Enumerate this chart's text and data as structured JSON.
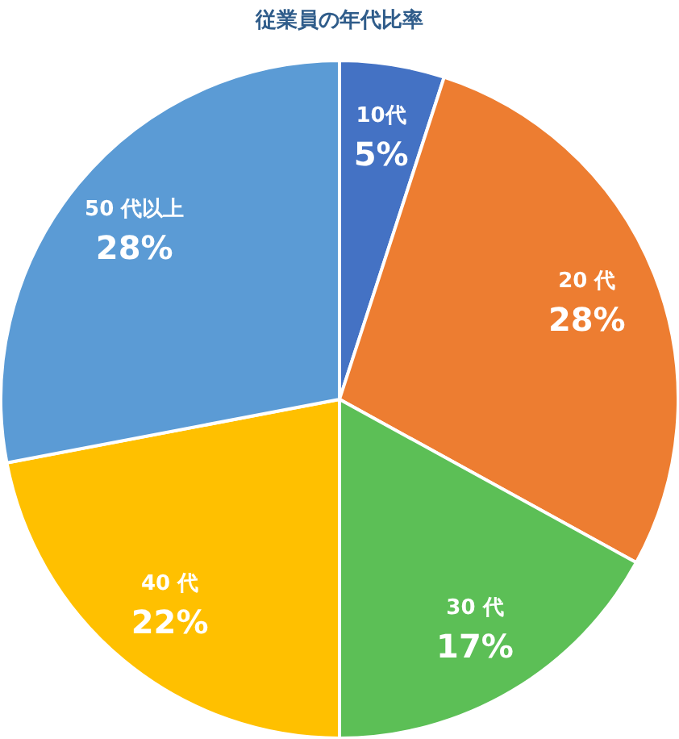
{
  "chart_data": {
    "type": "pie",
    "title": "従業員の年代比率",
    "categories": [
      "10代",
      "20 代",
      "30 代",
      "40 代",
      "50 代以上"
    ],
    "values": [
      5,
      28,
      17,
      22,
      28
    ],
    "colors": [
      "#4472c4",
      "#ed7d31",
      "#5cbf56",
      "#ffc000",
      "#5b9bd5"
    ],
    "value_labels": [
      "5%",
      "28%",
      "17%",
      "22%",
      "28%"
    ],
    "legend": false
  }
}
